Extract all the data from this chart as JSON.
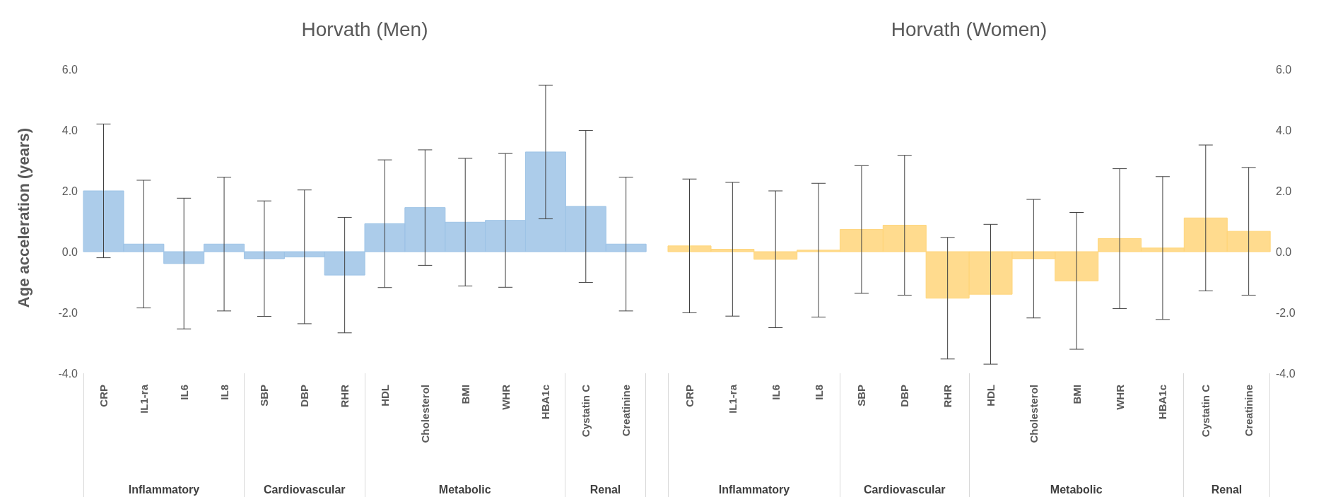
{
  "chart_data": [
    {
      "type": "bar",
      "title": "Horvath (Men)",
      "ylabel": "Age acceleration (years)",
      "categories": [
        "CRP",
        "IL1-ra",
        "IL6",
        "IL8",
        "SBP",
        "DBP",
        "RHR",
        "HDL",
        "Cholesterol",
        "BMI",
        "WHR",
        "HBA1c",
        "Cystatin C",
        "Creatinine"
      ],
      "series": [
        {
          "color": "#9dc3e6",
          "values": [
            2.0,
            0.25,
            -0.39,
            0.25,
            -0.23,
            -0.17,
            -0.77,
            0.92,
            1.45,
            0.97,
            1.03,
            3.28,
            1.49,
            0.25
          ],
          "errors": [
            2.2,
            2.1,
            2.15,
            2.2,
            1.9,
            2.2,
            1.9,
            2.1,
            1.9,
            2.1,
            2.2,
            2.2,
            2.5,
            2.2
          ]
        }
      ],
      "ylim": [
        -4,
        6
      ],
      "yticks": [
        {
          "value": -4,
          "label": "-4.0"
        },
        {
          "value": -2,
          "label": "-2.0"
        },
        {
          "value": 0,
          "label": "0.0"
        },
        {
          "value": 2,
          "label": "2.0"
        },
        {
          "value": 4,
          "label": "4.0"
        },
        {
          "value": 6,
          "label": "6.0"
        }
      ],
      "annotations": [
        "Inflammatory",
        "Cardiovascular",
        "Metabolic",
        "Renal"
      ],
      "grid": false,
      "legend": false
    },
    {
      "type": "bar",
      "title": "Horvath (Women)",
      "categories": [
        "CRP",
        "IL1-ra",
        "IL6",
        "IL8",
        "SBP",
        "DBP",
        "RHR",
        "HDL",
        "Cholesterol",
        "BMI",
        "WHR",
        "HBA1c",
        "Cystatin C",
        "Creatinine"
      ],
      "series": [
        {
          "color": "#ffd57a",
          "values": [
            0.19,
            0.08,
            -0.25,
            0.05,
            0.73,
            0.87,
            -1.53,
            -1.4,
            -0.23,
            -0.96,
            0.43,
            0.12,
            1.11,
            0.67
          ],
          "errors": [
            2.2,
            2.2,
            2.25,
            2.2,
            2.1,
            2.3,
            2.0,
            2.3,
            1.95,
            2.25,
            2.3,
            2.35,
            2.4,
            2.1
          ]
        }
      ],
      "ylim": [
        -4,
        6
      ],
      "yticks": [
        {
          "value": -4,
          "label": "-4.0"
        },
        {
          "value": -2,
          "label": "-2.0"
        },
        {
          "value": 0,
          "label": "0.0"
        },
        {
          "value": 2,
          "label": "2.0"
        },
        {
          "value": 4,
          "label": "4.0"
        },
        {
          "value": 6,
          "label": "6.0"
        }
      ],
      "annotations": [
        "Inflammatory",
        "Cardiovascular",
        "Metabolic",
        "Renal"
      ],
      "grid": false,
      "legend": false
    }
  ]
}
